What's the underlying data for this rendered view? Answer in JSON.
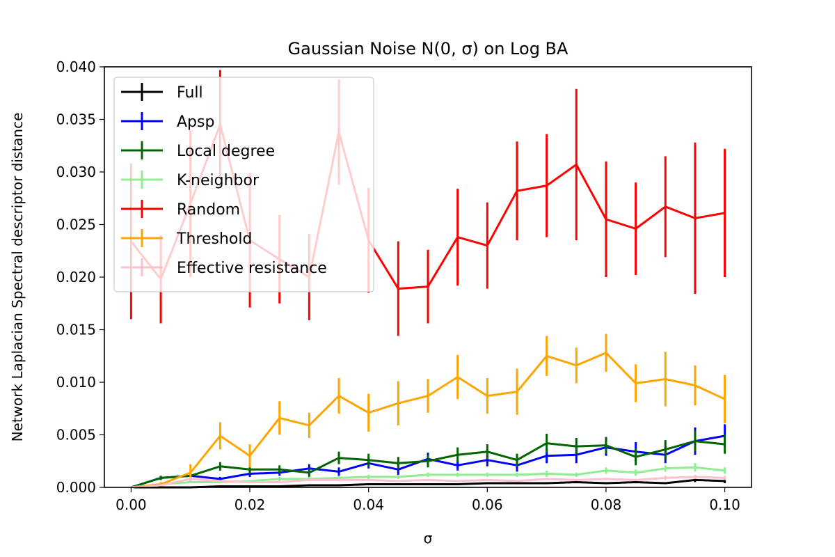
{
  "chart_data": {
    "type": "line",
    "title": "Gaussian Noise N(0, σ) on Log BA",
    "xlabel": "σ",
    "ylabel": "Network Laplacian Spectral descriptor distance",
    "xlim": [
      -0.0045,
      0.1045
    ],
    "ylim": [
      0,
      0.04
    ],
    "xticks": [
      0.0,
      0.02,
      0.04,
      0.06,
      0.08,
      0.1
    ],
    "xtick_labels": [
      "0.00",
      "0.02",
      "0.04",
      "0.06",
      "0.08",
      "0.10"
    ],
    "yticks": [
      0.0,
      0.005,
      0.01,
      0.015,
      0.02,
      0.025,
      0.03,
      0.035,
      0.04
    ],
    "ytick_labels": [
      "0.000",
      "0.005",
      "0.010",
      "0.015",
      "0.020",
      "0.025",
      "0.030",
      "0.035",
      "0.040"
    ],
    "legend_position": "top-left",
    "grid": false,
    "x": [
      0.0,
      0.005,
      0.01,
      0.015,
      0.02,
      0.025,
      0.03,
      0.035,
      0.04,
      0.045,
      0.05,
      0.055,
      0.06,
      0.065,
      0.07,
      0.075,
      0.08,
      0.085,
      0.09,
      0.095,
      0.1
    ],
    "series": [
      {
        "name": "Full",
        "color": "#000000",
        "values": [
          0.0,
          0.0,
          0.0,
          0.0001,
          0.0001,
          0.0001,
          0.0002,
          0.0002,
          0.0003,
          0.0003,
          0.0003,
          0.0003,
          0.0004,
          0.0004,
          0.0004,
          0.0005,
          0.0004,
          0.0005,
          0.0004,
          0.0007,
          0.0006
        ],
        "errors": [
          0,
          0.0001,
          0.0001,
          0.0001,
          0.0001,
          0.0001,
          0.0001,
          0.0001,
          0.0001,
          0.0001,
          0.0001,
          0.0001,
          0.0001,
          0.0001,
          0.0001,
          0.0001,
          0.0001,
          0.0001,
          0.0001,
          0.0002,
          0.0002
        ]
      },
      {
        "name": "Apsp",
        "color": "#0000ff",
        "values": [
          0.0,
          0.0009,
          0.0011,
          0.0008,
          0.0013,
          0.0014,
          0.0018,
          0.0015,
          0.0023,
          0.0017,
          0.0027,
          0.0021,
          0.0026,
          0.0021,
          0.003,
          0.0031,
          0.0038,
          0.0034,
          0.0031,
          0.0044,
          0.0049
        ],
        "errors": [
          0,
          0.0002,
          0.0002,
          0.0002,
          0.0003,
          0.0003,
          0.0004,
          0.0004,
          0.0005,
          0.0005,
          0.0006,
          0.0005,
          0.0006,
          0.0006,
          0.0007,
          0.0008,
          0.0008,
          0.0009,
          0.0008,
          0.0013,
          0.0011
        ]
      },
      {
        "name": "Local degree",
        "color": "#006400",
        "values": [
          0.0,
          0.0009,
          0.0011,
          0.002,
          0.0017,
          0.0017,
          0.0014,
          0.0028,
          0.0026,
          0.0023,
          0.0025,
          0.0031,
          0.0034,
          0.0026,
          0.0042,
          0.0039,
          0.004,
          0.0029,
          0.0036,
          0.0044,
          0.0041
        ],
        "errors": [
          0,
          0.0002,
          0.0002,
          0.0004,
          0.0004,
          0.0004,
          0.0004,
          0.0006,
          0.0006,
          0.0006,
          0.0006,
          0.0007,
          0.0007,
          0.0006,
          0.0009,
          0.0008,
          0.0008,
          0.0008,
          0.0009,
          0.001,
          0.0009
        ]
      },
      {
        "name": "K-neighbor",
        "color": "#90ee90",
        "values": [
          0.0,
          0.0003,
          0.0005,
          0.0005,
          0.0006,
          0.0008,
          0.0008,
          0.0009,
          0.001,
          0.001,
          0.0012,
          0.0012,
          0.0012,
          0.0012,
          0.0013,
          0.0012,
          0.0016,
          0.0014,
          0.0018,
          0.0019,
          0.0016
        ],
        "errors": [
          0,
          0.0001,
          0.0001,
          0.0001,
          0.0001,
          0.0002,
          0.0002,
          0.0002,
          0.0002,
          0.0002,
          0.0002,
          0.0002,
          0.0002,
          0.0002,
          0.0003,
          0.0002,
          0.0003,
          0.0003,
          0.0003,
          0.0004,
          0.0003
        ]
      },
      {
        "name": "Random",
        "color": "#ff0000",
        "values": [
          0.0234,
          0.0198,
          0.027,
          0.0345,
          0.0235,
          0.0217,
          0.02,
          0.0338,
          0.0235,
          0.0189,
          0.0191,
          0.0238,
          0.023,
          0.0282,
          0.0287,
          0.0307,
          0.0255,
          0.0246,
          0.0267,
          0.0256,
          0.0261
        ],
        "errors": [
          0.0074,
          0.0042,
          0.007,
          0.0052,
          0.0064,
          0.0042,
          0.0041,
          0.005,
          0.005,
          0.0045,
          0.0035,
          0.0046,
          0.0041,
          0.0047,
          0.0049,
          0.0072,
          0.0055,
          0.0044,
          0.0048,
          0.0072,
          0.0061
        ]
      },
      {
        "name": "Threshold",
        "color": "#ffa500",
        "values": [
          0.0,
          0.0003,
          0.0014,
          0.0049,
          0.003,
          0.0066,
          0.0059,
          0.0087,
          0.0071,
          0.008,
          0.0087,
          0.0105,
          0.0087,
          0.0091,
          0.0125,
          0.0116,
          0.0128,
          0.0099,
          0.0103,
          0.0097,
          0.0084
        ],
        "errors": [
          0,
          0.0002,
          0.0008,
          0.0013,
          0.0011,
          0.0016,
          0.0012,
          0.0017,
          0.0018,
          0.0021,
          0.0016,
          0.0021,
          0.0017,
          0.0022,
          0.0019,
          0.0017,
          0.0018,
          0.0018,
          0.0026,
          0.0019,
          0.0023
        ]
      },
      {
        "name": "Effective resistance",
        "color": "#ffc0cb",
        "values": [
          0.0,
          0.0002,
          0.0008,
          0.0006,
          0.0005,
          0.0005,
          0.0007,
          0.0007,
          0.0007,
          0.0006,
          0.0007,
          0.0006,
          0.0007,
          0.0006,
          0.0008,
          0.0007,
          0.0008,
          0.0007,
          0.0009,
          0.001,
          0.0009
        ],
        "errors": [
          0,
          0.0001,
          0.0002,
          0.0001,
          0.0001,
          0.0001,
          0.0001,
          0.0001,
          0.0001,
          0.0001,
          0.0001,
          0.0001,
          0.0001,
          0.0001,
          0.0001,
          0.0001,
          0.0001,
          0.0001,
          0.0002,
          0.0002,
          0.0002
        ]
      }
    ]
  }
}
